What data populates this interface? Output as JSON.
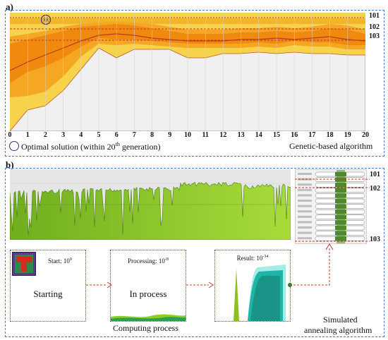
{
  "panel_a": {
    "label": "a)",
    "x_ticks": [
      "0",
      "1",
      "2",
      "3",
      "4",
      "5",
      "6",
      "7",
      "8",
      "9",
      "10",
      "11",
      "12",
      "13",
      "14",
      "15",
      "16",
      "17",
      "18",
      "19",
      "20"
    ],
    "levels": [
      "101",
      "102",
      "103"
    ],
    "marker_label": "XX",
    "legend_text": "Optimal solution (within 20",
    "legend_sup": "th",
    "legend_text_end": " generation)",
    "algorithm_label": "Genetic-based algorithm",
    "colors": {
      "band_outer": "#f6d34a",
      "band_mid": "#f5a623",
      "band_inner": "#ef8a0e",
      "line": "#b83a1a",
      "background": "#f0f0f0"
    }
  },
  "panel_b": {
    "label": "b)",
    "levels": [
      "101",
      "102",
      "103"
    ],
    "steps": [
      {
        "title": "Start: 10",
        "title_sup": "0",
        "main": "Starting"
      },
      {
        "title": "Processing: 10",
        "title_sup": "-8",
        "main": "In process"
      },
      {
        "title": "Result: 10",
        "title_sup": "-34",
        "main": ""
      }
    ],
    "computing_label": "Computing process",
    "algorithm_label_line1": "Simulated",
    "algorithm_label_line2": "annealing algorithm",
    "colors": {
      "area": "#9ad12a",
      "area_dark": "#5f9a18",
      "teal": "#1fb5a6",
      "bar": "#5a8f2a"
    }
  }
}
